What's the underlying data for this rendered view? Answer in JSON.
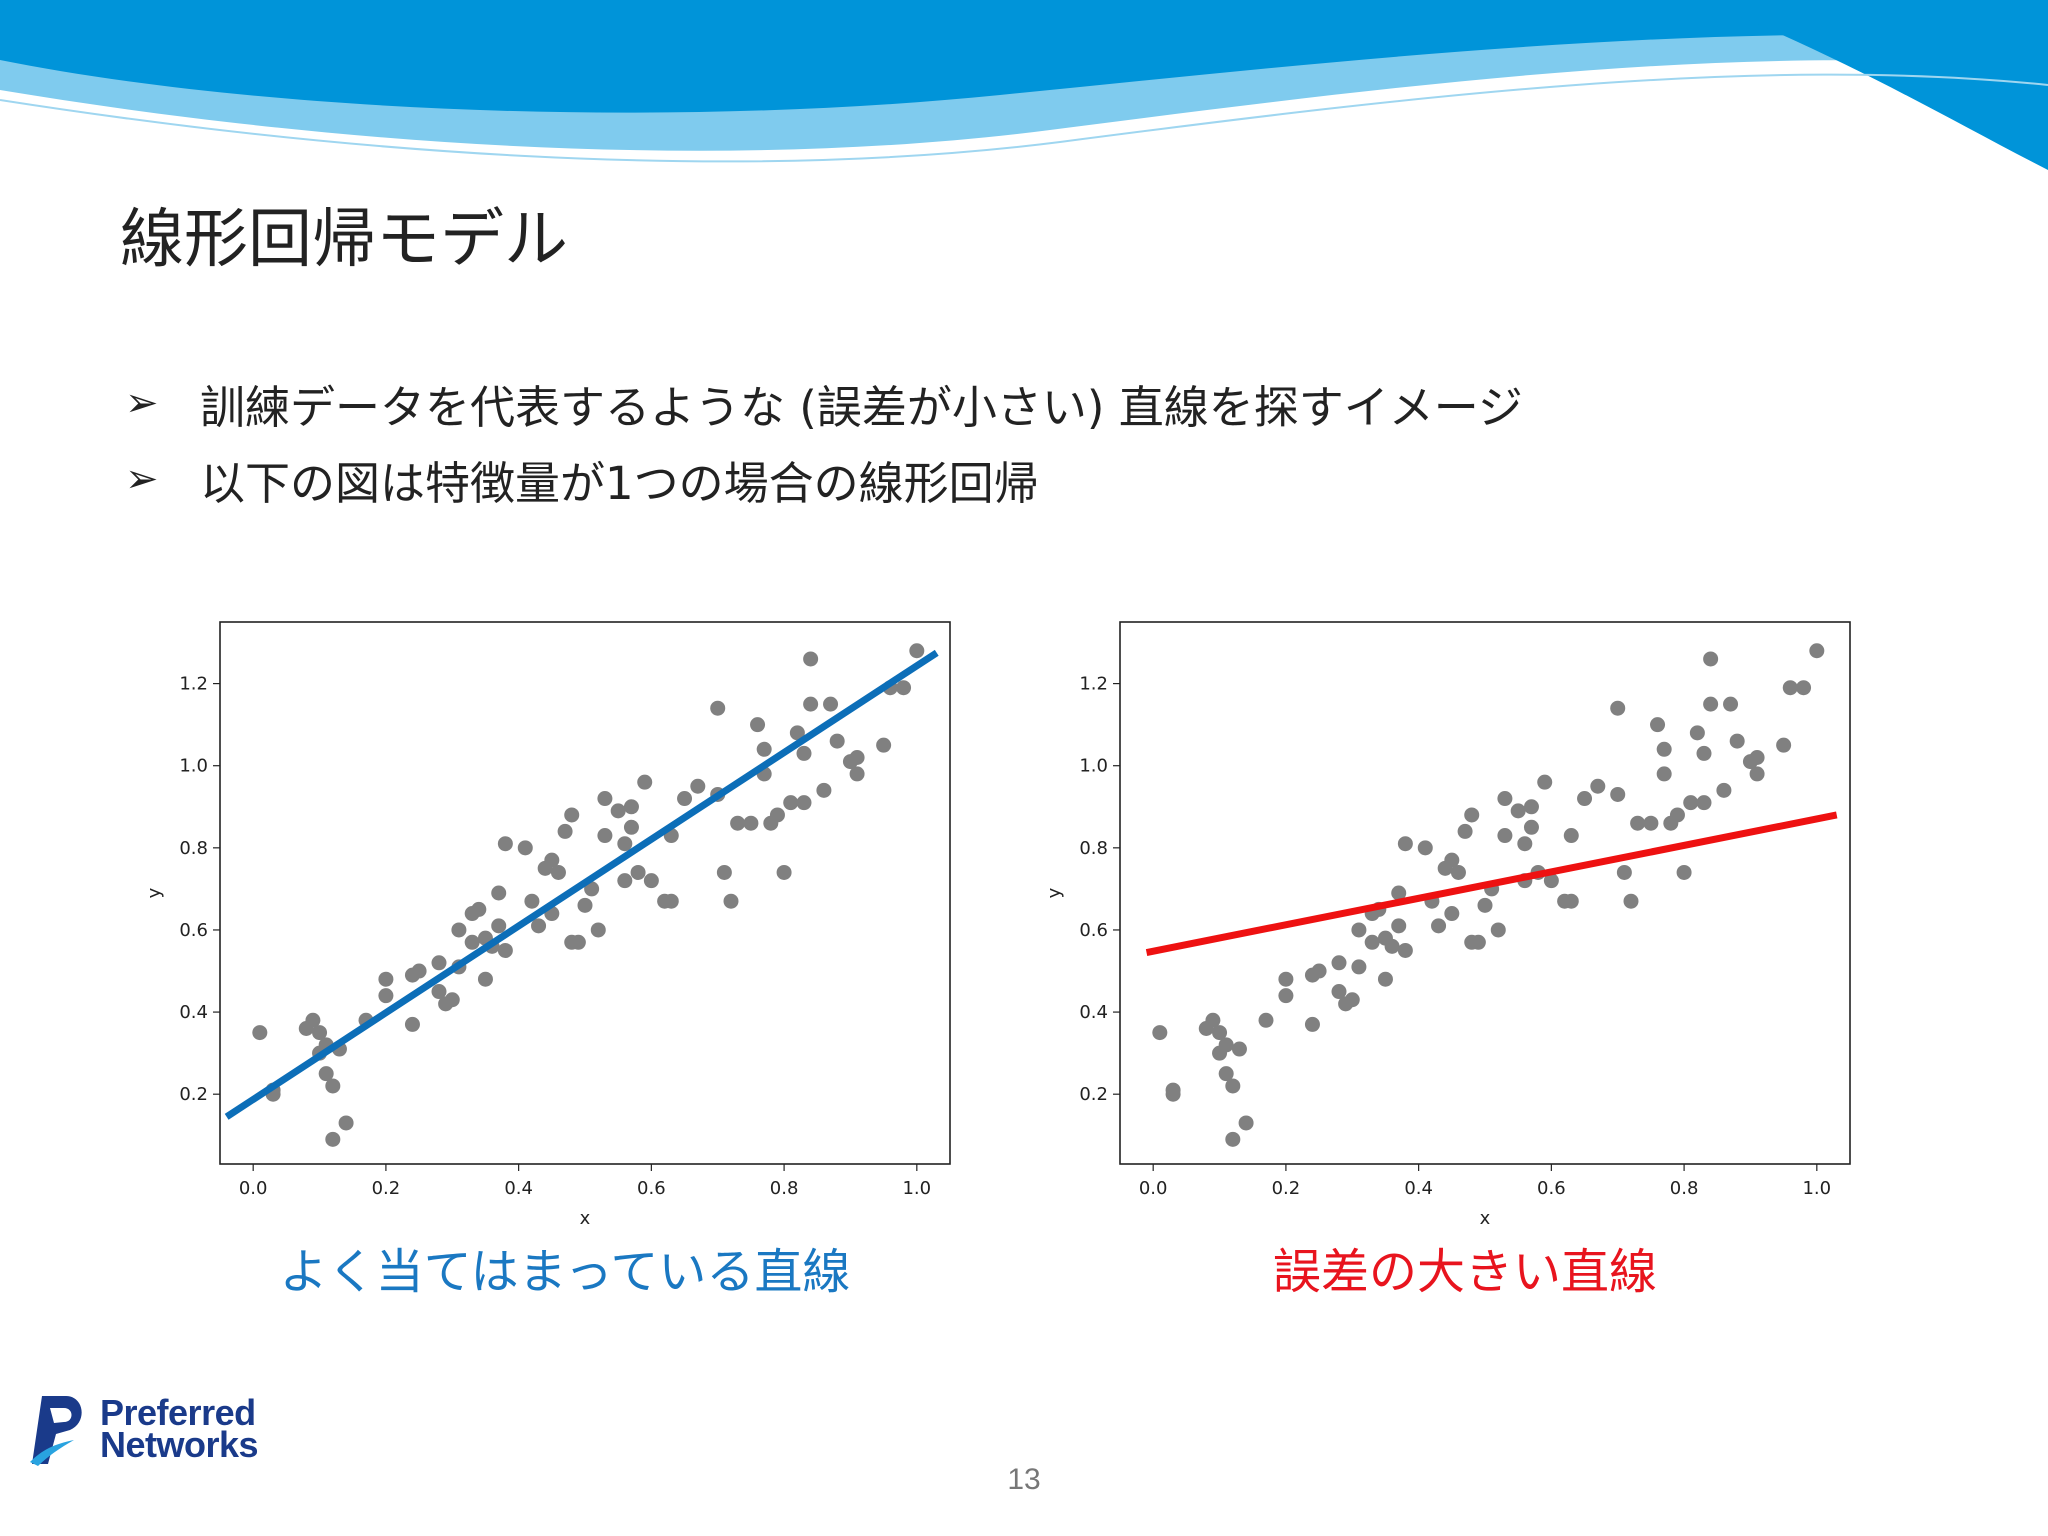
{
  "slide": {
    "title": "線形回帰モデル",
    "bullets": [
      "訓練データを代表するような (誤差が小さい) 直線を探すイメージ",
      "以下の図は特徴量が1つの場合の線形回帰"
    ],
    "bullet_marker": "➢",
    "page_number": "13",
    "logo": {
      "line1": "Preferred",
      "line2": "Networks"
    },
    "captions": {
      "left": "よく当てはまっている直線",
      "right": "誤差の大きい直線"
    },
    "colors": {
      "wave_dark": "#0094d9",
      "wave_light": "#7fcbee",
      "points": "#808080",
      "good_line": "#0c6eb8",
      "bad_line": "#ee1111",
      "caption_left": "#1a78c2",
      "caption_right": "#e8141e"
    }
  },
  "chart_data": [
    {
      "type": "scatter",
      "title": "",
      "xlabel": "x",
      "ylabel": "y",
      "xlim": [
        -0.05,
        1.05
      ],
      "ylim": [
        0.03,
        1.35
      ],
      "xticks": [
        "0.0",
        "0.2",
        "0.4",
        "0.6",
        "0.8",
        "1.0"
      ],
      "yticks": [
        "0.2",
        "0.4",
        "0.6",
        "0.8",
        "1.0",
        "1.2"
      ],
      "grid": false,
      "points": [
        [
          0.01,
          0.35
        ],
        [
          0.03,
          0.21
        ],
        [
          0.03,
          0.2
        ],
        [
          0.08,
          0.36
        ],
        [
          0.09,
          0.38
        ],
        [
          0.1,
          0.3
        ],
        [
          0.1,
          0.35
        ],
        [
          0.11,
          0.32
        ],
        [
          0.11,
          0.25
        ],
        [
          0.12,
          0.22
        ],
        [
          0.12,
          0.09
        ],
        [
          0.13,
          0.31
        ],
        [
          0.14,
          0.13
        ],
        [
          0.17,
          0.38
        ],
        [
          0.2,
          0.48
        ],
        [
          0.2,
          0.44
        ],
        [
          0.24,
          0.37
        ],
        [
          0.24,
          0.49
        ],
        [
          0.25,
          0.5
        ],
        [
          0.28,
          0.45
        ],
        [
          0.28,
          0.52
        ],
        [
          0.29,
          0.42
        ],
        [
          0.3,
          0.43
        ],
        [
          0.31,
          0.51
        ],
        [
          0.31,
          0.6
        ],
        [
          0.33,
          0.64
        ],
        [
          0.33,
          0.57
        ],
        [
          0.34,
          0.65
        ],
        [
          0.35,
          0.58
        ],
        [
          0.35,
          0.48
        ],
        [
          0.36,
          0.56
        ],
        [
          0.37,
          0.61
        ],
        [
          0.37,
          0.69
        ],
        [
          0.38,
          0.55
        ],
        [
          0.38,
          0.81
        ],
        [
          0.41,
          0.8
        ],
        [
          0.42,
          0.67
        ],
        [
          0.43,
          0.61
        ],
        [
          0.44,
          0.75
        ],
        [
          0.45,
          0.77
        ],
        [
          0.45,
          0.64
        ],
        [
          0.46,
          0.74
        ],
        [
          0.47,
          0.84
        ],
        [
          0.48,
          0.57
        ],
        [
          0.48,
          0.88
        ],
        [
          0.49,
          0.57
        ],
        [
          0.5,
          0.66
        ],
        [
          0.51,
          0.7
        ],
        [
          0.52,
          0.6
        ],
        [
          0.53,
          0.92
        ],
        [
          0.53,
          0.83
        ],
        [
          0.55,
          0.89
        ],
        [
          0.56,
          0.72
        ],
        [
          0.56,
          0.81
        ],
        [
          0.57,
          0.85
        ],
        [
          0.57,
          0.9
        ],
        [
          0.58,
          0.74
        ],
        [
          0.59,
          0.96
        ],
        [
          0.6,
          0.72
        ],
        [
          0.62,
          0.67
        ],
        [
          0.63,
          0.67
        ],
        [
          0.63,
          0.83
        ],
        [
          0.65,
          0.92
        ],
        [
          0.67,
          0.95
        ],
        [
          0.7,
          1.14
        ],
        [
          0.7,
          0.93
        ],
        [
          0.71,
          0.74
        ],
        [
          0.72,
          0.67
        ],
        [
          0.73,
          0.86
        ],
        [
          0.75,
          0.86
        ],
        [
          0.76,
          1.1
        ],
        [
          0.77,
          1.04
        ],
        [
          0.77,
          0.98
        ],
        [
          0.78,
          0.86
        ],
        [
          0.79,
          0.88
        ],
        [
          0.8,
          0.74
        ],
        [
          0.81,
          0.91
        ],
        [
          0.82,
          1.08
        ],
        [
          0.83,
          1.03
        ],
        [
          0.83,
          0.91
        ],
        [
          0.84,
          1.26
        ],
        [
          0.84,
          1.15
        ],
        [
          0.86,
          0.94
        ],
        [
          0.87,
          1.15
        ],
        [
          0.88,
          1.06
        ],
        [
          0.9,
          1.01
        ],
        [
          0.91,
          1.02
        ],
        [
          0.91,
          0.98
        ],
        [
          0.95,
          1.05
        ],
        [
          0.96,
          1.19
        ],
        [
          0.98,
          1.19
        ],
        [
          1.0,
          1.28
        ]
      ],
      "fit_line": {
        "x": [
          -0.04,
          1.03
        ],
        "y": [
          0.145,
          1.275
        ]
      }
    },
    {
      "type": "scatter",
      "title": "",
      "xlabel": "x",
      "ylabel": "y",
      "xlim": [
        -0.05,
        1.05
      ],
      "ylim": [
        0.03,
        1.35
      ],
      "xticks": [
        "0.0",
        "0.2",
        "0.4",
        "0.6",
        "0.8",
        "1.0"
      ],
      "yticks": [
        "0.2",
        "0.4",
        "0.6",
        "0.8",
        "1.0",
        "1.2"
      ],
      "grid": false,
      "points": [
        [
          0.01,
          0.35
        ],
        [
          0.03,
          0.21
        ],
        [
          0.03,
          0.2
        ],
        [
          0.08,
          0.36
        ],
        [
          0.09,
          0.38
        ],
        [
          0.1,
          0.3
        ],
        [
          0.1,
          0.35
        ],
        [
          0.11,
          0.32
        ],
        [
          0.11,
          0.25
        ],
        [
          0.12,
          0.22
        ],
        [
          0.12,
          0.09
        ],
        [
          0.13,
          0.31
        ],
        [
          0.14,
          0.13
        ],
        [
          0.17,
          0.38
        ],
        [
          0.2,
          0.48
        ],
        [
          0.2,
          0.44
        ],
        [
          0.24,
          0.37
        ],
        [
          0.24,
          0.49
        ],
        [
          0.25,
          0.5
        ],
        [
          0.28,
          0.45
        ],
        [
          0.28,
          0.52
        ],
        [
          0.29,
          0.42
        ],
        [
          0.3,
          0.43
        ],
        [
          0.31,
          0.51
        ],
        [
          0.31,
          0.6
        ],
        [
          0.33,
          0.64
        ],
        [
          0.33,
          0.57
        ],
        [
          0.34,
          0.65
        ],
        [
          0.35,
          0.58
        ],
        [
          0.35,
          0.48
        ],
        [
          0.36,
          0.56
        ],
        [
          0.37,
          0.61
        ],
        [
          0.37,
          0.69
        ],
        [
          0.38,
          0.55
        ],
        [
          0.38,
          0.81
        ],
        [
          0.41,
          0.8
        ],
        [
          0.42,
          0.67
        ],
        [
          0.43,
          0.61
        ],
        [
          0.44,
          0.75
        ],
        [
          0.45,
          0.77
        ],
        [
          0.45,
          0.64
        ],
        [
          0.46,
          0.74
        ],
        [
          0.47,
          0.84
        ],
        [
          0.48,
          0.57
        ],
        [
          0.48,
          0.88
        ],
        [
          0.49,
          0.57
        ],
        [
          0.5,
          0.66
        ],
        [
          0.51,
          0.7
        ],
        [
          0.52,
          0.6
        ],
        [
          0.53,
          0.92
        ],
        [
          0.53,
          0.83
        ],
        [
          0.55,
          0.89
        ],
        [
          0.56,
          0.72
        ],
        [
          0.56,
          0.81
        ],
        [
          0.57,
          0.85
        ],
        [
          0.57,
          0.9
        ],
        [
          0.58,
          0.74
        ],
        [
          0.59,
          0.96
        ],
        [
          0.6,
          0.72
        ],
        [
          0.62,
          0.67
        ],
        [
          0.63,
          0.67
        ],
        [
          0.63,
          0.83
        ],
        [
          0.65,
          0.92
        ],
        [
          0.67,
          0.95
        ],
        [
          0.7,
          1.14
        ],
        [
          0.7,
          0.93
        ],
        [
          0.71,
          0.74
        ],
        [
          0.72,
          0.67
        ],
        [
          0.73,
          0.86
        ],
        [
          0.75,
          0.86
        ],
        [
          0.76,
          1.1
        ],
        [
          0.77,
          1.04
        ],
        [
          0.77,
          0.98
        ],
        [
          0.78,
          0.86
        ],
        [
          0.79,
          0.88
        ],
        [
          0.8,
          0.74
        ],
        [
          0.81,
          0.91
        ],
        [
          0.82,
          1.08
        ],
        [
          0.83,
          1.03
        ],
        [
          0.83,
          0.91
        ],
        [
          0.84,
          1.26
        ],
        [
          0.84,
          1.15
        ],
        [
          0.86,
          0.94
        ],
        [
          0.87,
          1.15
        ],
        [
          0.88,
          1.06
        ],
        [
          0.9,
          1.01
        ],
        [
          0.91,
          1.02
        ],
        [
          0.91,
          0.98
        ],
        [
          0.95,
          1.05
        ],
        [
          0.96,
          1.19
        ],
        [
          0.98,
          1.19
        ],
        [
          1.0,
          1.28
        ]
      ],
      "fit_line": {
        "x": [
          -0.01,
          1.03
        ],
        "y": [
          0.545,
          0.88
        ]
      }
    }
  ]
}
